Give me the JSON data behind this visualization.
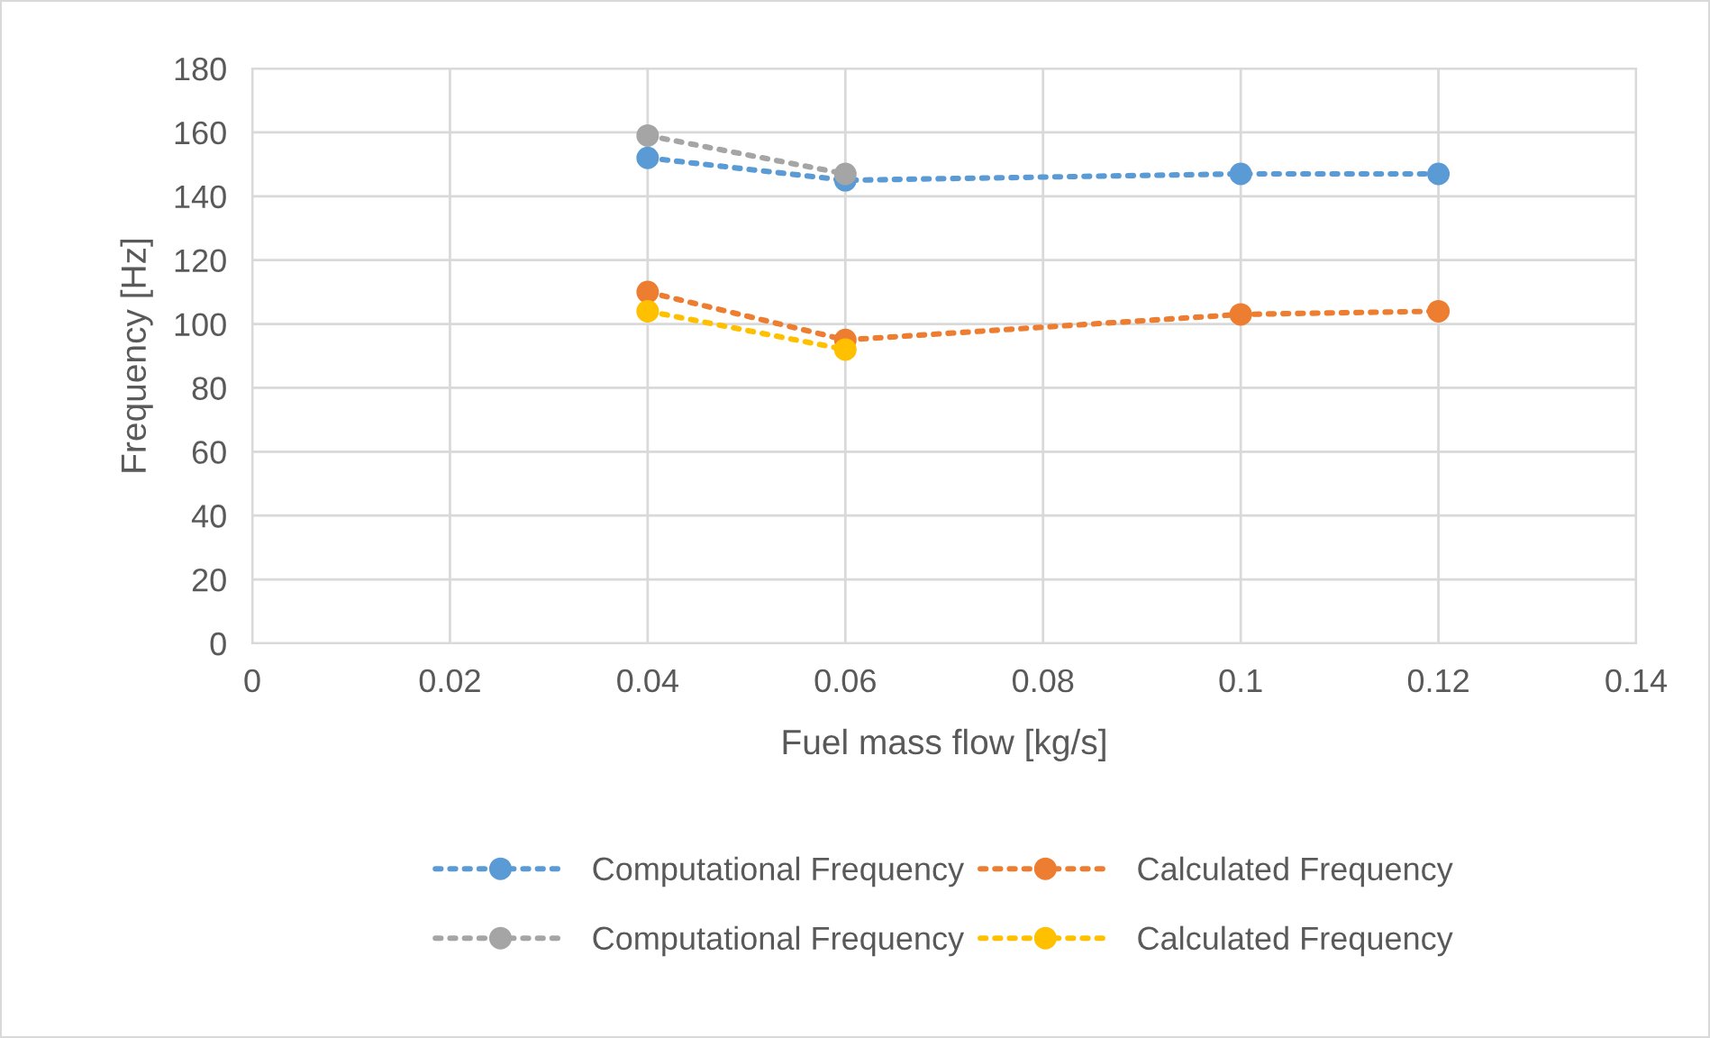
{
  "chart_data": {
    "type": "line",
    "xlabel": "Fuel mass flow [kg/s]",
    "ylabel": "Frequency [Hz]",
    "xlim": [
      0,
      0.14
    ],
    "xticks": [
      0,
      0.02,
      0.04,
      0.06,
      0.08,
      0.1,
      0.12,
      0.14
    ],
    "ylim": [
      0,
      180
    ],
    "yticks": [
      0,
      20,
      40,
      60,
      80,
      100,
      120,
      140,
      160,
      180
    ],
    "grid": true,
    "legend": "bottom",
    "marker": "circle",
    "line_style": "dotted",
    "series": [
      {
        "name": "Computational Frequency",
        "color": "#5b9bd5",
        "x": [
          0.04,
          0.06,
          0.1,
          0.12
        ],
        "values": [
          152,
          145,
          147,
          147
        ]
      },
      {
        "name": "Calculated Frequency",
        "color": "#ed7d31",
        "x": [
          0.04,
          0.06,
          0.1,
          0.12
        ],
        "values": [
          110,
          95,
          103,
          104
        ]
      },
      {
        "name": "Computational Frequency",
        "color": "#a5a5a5",
        "x": [
          0.04,
          0.06
        ],
        "values": [
          159,
          147
        ]
      },
      {
        "name": "Calculated Frequency",
        "color": "#ffc000",
        "x": [
          0.04,
          0.06
        ],
        "values": [
          104,
          92
        ]
      }
    ]
  }
}
